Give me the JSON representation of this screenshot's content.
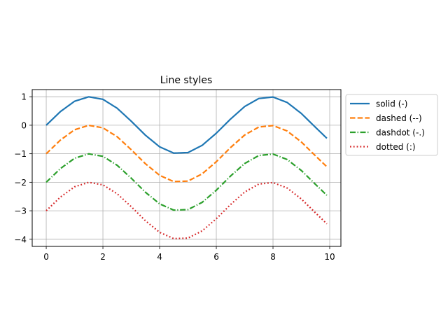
{
  "chart_data": {
    "type": "line",
    "title": "Line styles",
    "xlabel": "",
    "ylabel": "",
    "xlim": [
      -0.495,
      10.395
    ],
    "ylim": [
      -4.25,
      1.25
    ],
    "xticks": [
      0,
      2,
      4,
      6,
      8,
      10
    ],
    "yticks": [
      1,
      0,
      -1,
      -2,
      -3,
      -4
    ],
    "grid": true,
    "legend_position": "outside-right",
    "x": [
      0,
      0.5,
      1.0,
      1.5,
      2.0,
      2.5,
      3.0,
      3.5,
      4.0,
      4.5,
      5.0,
      5.5,
      6.0,
      6.5,
      7.0,
      7.5,
      8.0,
      8.5,
      9.0,
      9.5,
      9.9
    ],
    "series": [
      {
        "name": "solid (-)",
        "color": "#1f77b4",
        "linestyle": "solid",
        "values": [
          0.0,
          0.479,
          0.841,
          0.997,
          0.909,
          0.598,
          0.141,
          -0.351,
          -0.757,
          -0.978,
          -0.959,
          -0.706,
          -0.279,
          0.215,
          0.657,
          0.938,
          0.989,
          0.798,
          0.412,
          -0.075,
          -0.458
        ]
      },
      {
        "name": "dashed (--)",
        "color": "#ff7f0e",
        "linestyle": "dashed",
        "values": [
          -1.0,
          -0.521,
          -0.159,
          -0.003,
          -0.091,
          -0.402,
          -0.859,
          -1.351,
          -1.757,
          -1.978,
          -1.959,
          -1.706,
          -1.279,
          -0.785,
          -0.343,
          -0.062,
          -0.011,
          -0.202,
          -0.588,
          -1.075,
          -1.458
        ]
      },
      {
        "name": "dashdot (-.)",
        "color": "#2ca02c",
        "linestyle": "dashdot",
        "values": [
          -2.0,
          -1.521,
          -1.159,
          -1.003,
          -1.091,
          -1.402,
          -1.859,
          -2.351,
          -2.757,
          -2.978,
          -2.959,
          -2.706,
          -2.279,
          -1.785,
          -1.343,
          -1.062,
          -1.011,
          -1.202,
          -1.588,
          -2.075,
          -2.458
        ]
      },
      {
        "name": "dotted (:)",
        "color": "#d62728",
        "linestyle": "dotted",
        "values": [
          -3.0,
          -2.521,
          -2.159,
          -2.003,
          -2.091,
          -2.402,
          -2.859,
          -3.351,
          -3.757,
          -3.978,
          -3.959,
          -3.706,
          -3.279,
          -2.785,
          -2.343,
          -2.062,
          -2.011,
          -2.202,
          -2.588,
          -3.075,
          -3.458
        ]
      }
    ]
  }
}
